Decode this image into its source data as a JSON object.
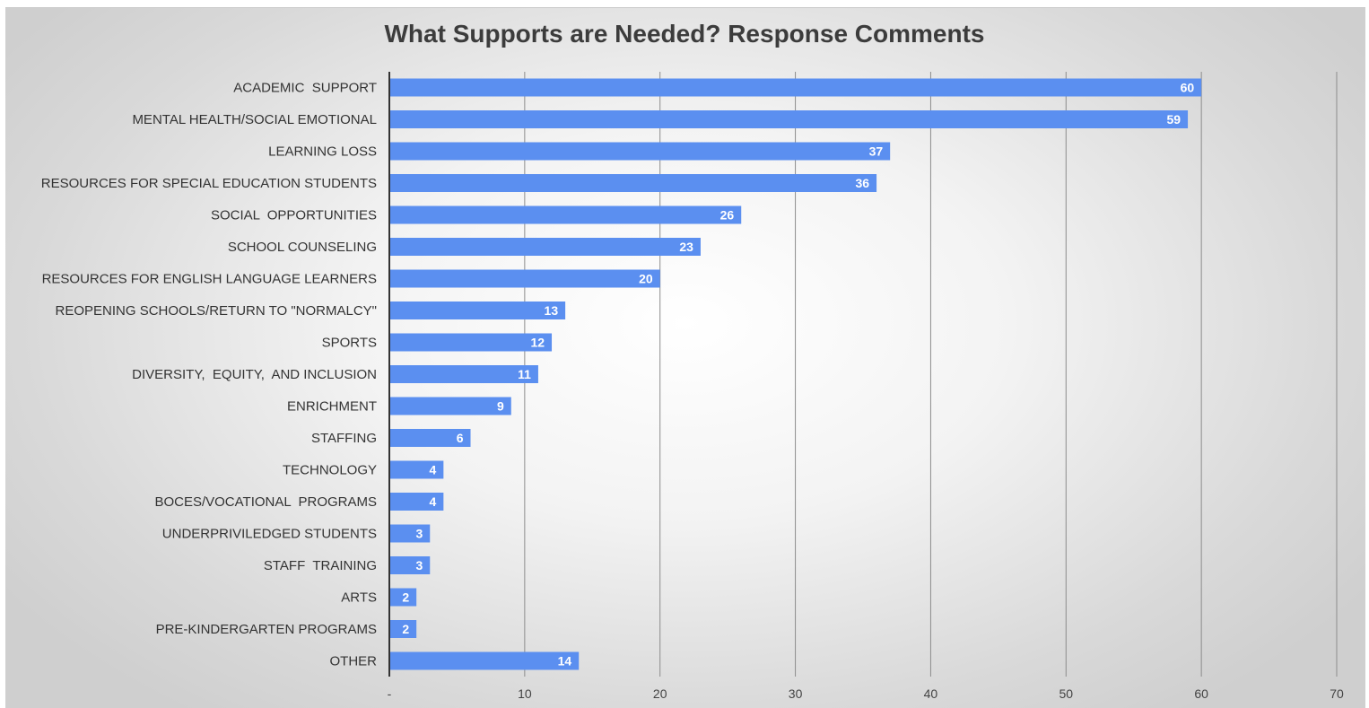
{
  "chart_data": {
    "type": "bar",
    "orientation": "horizontal",
    "title": "What Supports are Needed? Response Comments",
    "xlabel": "",
    "ylabel": "",
    "categories": [
      "ACADEMIC  SUPPORT",
      "MENTAL HEALTH/SOCIAL EMOTIONAL",
      "LEARNING LOSS",
      "RESOURCES FOR SPECIAL EDUCATION STUDENTS",
      "SOCIAL  OPPORTUNITIES",
      "SCHOOL COUNSELING",
      "RESOURCES FOR ENGLISH LANGUAGE LEARNERS",
      "REOPENING SCHOOLS/RETURN TO \"NORMALCY\"",
      "SPORTS",
      "DIVERSITY,  EQUITY,  AND INCLUSION",
      "ENRICHMENT",
      "STAFFING",
      "TECHNOLOGY",
      "BOCES/VOCATIONAL  PROGRAMS",
      "UNDERPRIVILEDGED STUDENTS",
      "STAFF  TRAINING",
      "ARTS",
      "PRE-KINDERGARTEN PROGRAMS",
      "OTHER"
    ],
    "values": [
      60,
      59,
      37,
      36,
      26,
      23,
      20,
      13,
      12,
      11,
      9,
      6,
      4,
      4,
      3,
      3,
      2,
      2,
      14
    ],
    "xlim": [
      0,
      70
    ],
    "x_ticks": [
      "-",
      "10",
      "20",
      "30",
      "40",
      "50",
      "60",
      "70"
    ],
    "x_tick_values": [
      0,
      10,
      20,
      30,
      40,
      50,
      60,
      70
    ],
    "grid": "vertical",
    "data_labels": true,
    "colors": {
      "bar": "#5b8ff0",
      "grid": "#8c8c8c",
      "axis": "#333333"
    }
  }
}
